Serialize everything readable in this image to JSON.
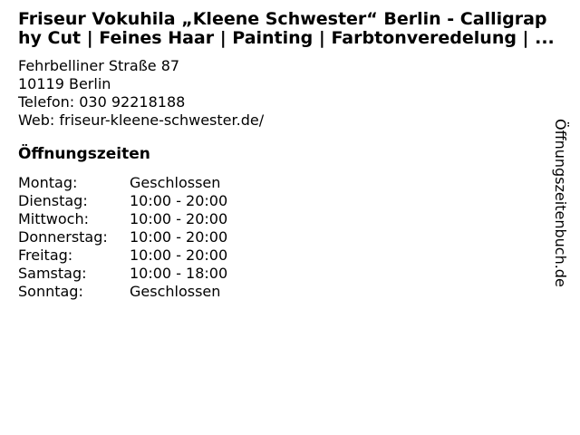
{
  "colors": {
    "text": "#000000",
    "background": "#ffffff"
  },
  "header": {
    "title_line1": "Friseur Vokuhila „Kleene Schwester“ Berlin - Calligrap",
    "title_line2": "hy Cut | Feines Haar | Painting | Farbtonveredelung | ..."
  },
  "contact": {
    "street": "Fehrbelliner Straße 87",
    "city": "10119 Berlin",
    "phone_label": "Telefon:",
    "phone_value": "030 92218188",
    "web_label": "Web:",
    "web_value": "friseur-kleene-schwester.de/"
  },
  "hours": {
    "heading": "Öffnungszeiten",
    "rows": [
      {
        "day": "Montag:",
        "time": "Geschlossen"
      },
      {
        "day": "Dienstag:",
        "time": "10:00 - 20:00"
      },
      {
        "day": "Mittwoch:",
        "time": "10:00 - 20:00"
      },
      {
        "day": "Donnerstag:",
        "time": "10:00 - 20:00"
      },
      {
        "day": "Freitag:",
        "time": "10:00 - 20:00"
      },
      {
        "day": "Samstag:",
        "time": "10:00 - 18:00"
      },
      {
        "day": "Sonntag:",
        "time": "Geschlossen"
      }
    ]
  },
  "watermark": {
    "label": "Öffnungszeitenbuch.de"
  }
}
